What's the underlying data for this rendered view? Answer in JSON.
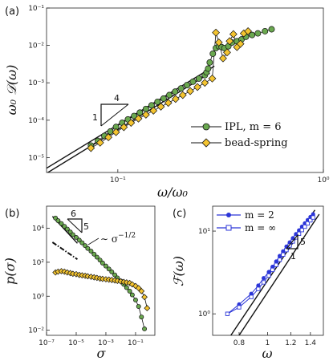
{
  "panels": {
    "a": {
      "label": "(a)",
      "xlabel": "ω/ω₀",
      "ylabel": "ω₀ 𝒟(ω)"
    },
    "b": {
      "label": "(b)",
      "xlabel": "σ",
      "ylabel": "p(σ)"
    },
    "c": {
      "label": "(c)",
      "xlabel": "ω",
      "ylabel": "ℱ(ω)"
    }
  },
  "annotations": {
    "a_tri_top": "4",
    "a_tri_side": "1",
    "b_tri_top": "6",
    "b_tri_side": "5",
    "b_power": "∼ σ",
    "b_power_exp": "−1/2",
    "c_tri_side": "5",
    "c_tri_bottom": "1"
  },
  "legends": {
    "a": [
      "IPL, m = 6",
      "bead-spring"
    ],
    "c": [
      "m = 2",
      "m = ∞"
    ]
  },
  "colors": {
    "green": "#6aa84f",
    "yellow": "#f4c430",
    "blue": "#2b35d8"
  },
  "chart_data": [
    {
      "id": "a",
      "type": "scatter",
      "xscale": "log",
      "yscale": "log",
      "xlim": [
        0.045,
        1.0
      ],
      "ylim": [
        4e-06,
        0.1
      ],
      "xticks": [
        {
          "v": 0.1,
          "label": "10⁻¹"
        },
        {
          "v": 1,
          "label": "10⁰"
        }
      ],
      "yticks": [
        {
          "v": 1e-05,
          "label": "10⁻⁵"
        },
        {
          "v": 0.0001,
          "label": "10⁻⁴"
        },
        {
          "v": 0.001,
          "label": "10⁻³"
        },
        {
          "v": 0.01,
          "label": "10⁻²"
        },
        {
          "v": 0.1,
          "label": "10⁻¹"
        }
      ],
      "series": [
        {
          "name": "IPL, m = 6",
          "marker": "circle",
          "x": [
            0.074,
            0.08,
            0.086,
            0.092,
            0.098,
            0.105,
            0.112,
            0.12,
            0.128,
            0.137,
            0.146,
            0.156,
            0.167,
            0.178,
            0.19,
            0.203,
            0.217,
            0.232,
            0.248,
            0.265,
            0.27,
            0.275,
            0.28,
            0.29,
            0.3,
            0.31,
            0.32,
            0.33,
            0.345,
            0.36,
            0.38,
            0.4,
            0.42,
            0.45,
            0.48,
            0.52,
            0.56
          ],
          "y": [
            2.1e-05,
            2.8e-05,
            3.8e-05,
            5e-05,
            6.6e-05,
            8.5e-05,
            0.000105,
            0.00013,
            0.00016,
            0.0002,
            0.00025,
            0.00031,
            0.00038,
            0.00047,
            0.00058,
            0.00071,
            0.00087,
            0.00107,
            0.0013,
            0.0016,
            0.0019,
            0.0024,
            0.0035,
            0.006,
            0.0085,
            0.0095,
            0.009,
            0.0085,
            0.0095,
            0.012,
            0.013,
            0.0145,
            0.017,
            0.019,
            0.021,
            0.024,
            0.027
          ]
        },
        {
          "name": "bead-spring",
          "marker": "diamond",
          "x": [
            0.074,
            0.082,
            0.09,
            0.098,
            0.107,
            0.116,
            0.126,
            0.137,
            0.149,
            0.162,
            0.176,
            0.191,
            0.207,
            0.225,
            0.244,
            0.265,
            0.288,
            0.3,
            0.31,
            0.325,
            0.34,
            0.35,
            0.365,
            0.38,
            0.395,
            0.41,
            0.43
          ],
          "y": [
            1.8e-05,
            2.5e-05,
            3.5e-05,
            4.8e-05,
            6.5e-05,
            8.5e-05,
            0.00011,
            0.00014,
            0.00018,
            0.00023,
            0.00029,
            0.00037,
            0.00047,
            0.0006,
            0.00077,
            0.001,
            0.0013,
            0.022,
            0.012,
            0.0045,
            0.0065,
            0.013,
            0.02,
            0.009,
            0.011,
            0.021,
            0.024
          ]
        }
      ],
      "fit_lines": [
        {
          "x": [
            0.045,
            0.295
          ],
          "y": [
            5.2e-06,
            0.0028
          ]
        },
        {
          "x": [
            0.045,
            0.28
          ],
          "y": [
            3.8e-06,
            0.0018
          ]
        }
      ]
    },
    {
      "id": "b",
      "type": "scatter",
      "xscale": "log",
      "yscale": "log",
      "xlim": [
        1e-07,
        2.0
      ],
      "ylim": [
        0.005,
        200000
      ],
      "xticks": [
        {
          "v": 1e-07,
          "label": "10⁻⁷"
        },
        {
          "v": 1e-05,
          "label": "10⁻⁵"
        },
        {
          "v": 0.001,
          "label": "10⁻³"
        },
        {
          "v": 0.1,
          "label": "10⁻¹"
        }
      ],
      "yticks": [
        {
          "v": 0.01,
          "label": "10⁻²"
        },
        {
          "v": 1,
          "label": "10⁰"
        },
        {
          "v": 100,
          "label": "10²"
        },
        {
          "v": 10000,
          "label": "10⁴"
        }
      ],
      "series": [
        {
          "name": "",
          "marker": "circle",
          "x": [
            4e-07,
            6e-07,
            1e-06,
            1.6e-06,
            2.5e-06,
            4e-06,
            6e-06,
            1e-05,
            1.6e-05,
            2.5e-05,
            4e-05,
            6e-05,
            0.0001,
            0.00016,
            0.00025,
            0.0004,
            0.0006,
            0.001,
            0.0016,
            0.0025,
            0.004,
            0.006,
            0.01,
            0.016,
            0.025,
            0.04,
            0.06,
            0.1,
            0.16,
            0.25,
            0.4
          ],
          "y": [
            40000,
            28000,
            19000,
            13000,
            9000,
            6000,
            4200,
            2900,
            2000,
            1400,
            950,
            650,
            450,
            300,
            200,
            135,
            90,
            60,
            40,
            27,
            18,
            12,
            8,
            5,
            3.2,
            2,
            1.2,
            0.6,
            0.25,
            0.06,
            0.012
          ]
        },
        {
          "name": "",
          "marker": "diamond",
          "x": [
            4e-07,
            6e-07,
            1e-06,
            1.6e-06,
            2.5e-06,
            4e-06,
            6e-06,
            1e-05,
            1.6e-05,
            2.5e-05,
            4e-05,
            6e-05,
            0.0001,
            0.00016,
            0.00025,
            0.0004,
            0.0006,
            0.001,
            0.0016,
            0.0025,
            0.004,
            0.006,
            0.01,
            0.016,
            0.025,
            0.04,
            0.06,
            0.1,
            0.16,
            0.25,
            0.4,
            0.6
          ],
          "y": [
            25,
            28,
            30,
            28,
            25,
            23,
            21,
            20,
            18,
            17,
            16,
            15,
            14,
            13,
            12,
            11,
            10.5,
            10,
            9.5,
            9,
            8.5,
            8,
            7.5,
            7,
            6.5,
            6,
            5,
            4,
            3,
            2,
            0.9,
            0.2
          ]
        }
      ],
      "fit_lines": [
        {
          "x": [
            2.5e-07,
            1.2e-05
          ],
          "y": [
            50000,
            1300
          ],
          "dash": "none"
        },
        {
          "x": [
            2.5e-07,
            1.2e-05
          ],
          "y": [
            1500,
            150
          ],
          "dash": "dashdot"
        }
      ]
    },
    {
      "id": "c",
      "type": "line",
      "xscale": "log",
      "yscale": "log",
      "xlim": [
        0.65,
        1.55
      ],
      "ylim": [
        0.55,
        20
      ],
      "xticks": [
        {
          "v": 0.8,
          "label": "0.8"
        },
        {
          "v": 1.0,
          "label": "1"
        },
        {
          "v": 1.2,
          "label": "1.2"
        },
        {
          "v": 1.4,
          "label": "1.4"
        }
      ],
      "yticks": [
        {
          "v": 1,
          "label": "10⁰"
        },
        {
          "v": 10,
          "label": "10¹"
        }
      ],
      "series": [
        {
          "name": "m = 2",
          "marker": "circle",
          "x": [
            0.73,
            0.8,
            0.88,
            0.93,
            0.97,
            1.01,
            1.04,
            1.07,
            1.1,
            1.13,
            1.16,
            1.19,
            1.22,
            1.25,
            1.28,
            1.31,
            1.34,
            1.37,
            1.4,
            1.43
          ],
          "y": [
            1.0,
            1.3,
            1.75,
            2.2,
            2.7,
            3.2,
            3.7,
            4.3,
            5.0,
            5.7,
            6.5,
            7.3,
            8.2,
            9.2,
            10.2,
            11.3,
            12.4,
            13.6,
            14.8,
            16.0
          ]
        },
        {
          "name": "m = ∞",
          "marker": "square",
          "x": [
            0.73,
            0.8,
            0.88,
            0.93,
            0.97,
            1.01,
            1.04,
            1.07,
            1.1,
            1.13,
            1.16,
            1.19,
            1.22,
            1.25,
            1.28,
            1.31,
            1.34,
            1.37,
            1.4,
            1.43
          ],
          "y": [
            1.0,
            1.2,
            1.6,
            2.0,
            2.4,
            2.9,
            3.4,
            3.9,
            4.5,
            5.2,
            5.9,
            6.7,
            7.5,
            8.4,
            9.3,
            10.3,
            11.3,
            12.4,
            13.5,
            14.6
          ]
        }
      ],
      "fit_lines": [
        {
          "x": [
            0.8,
            1.5
          ],
          "y": [
            0.55,
            16.0
          ]
        },
        {
          "x": [
            0.75,
            1.45
          ],
          "y": [
            0.55,
            18.0
          ]
        }
      ]
    }
  ]
}
